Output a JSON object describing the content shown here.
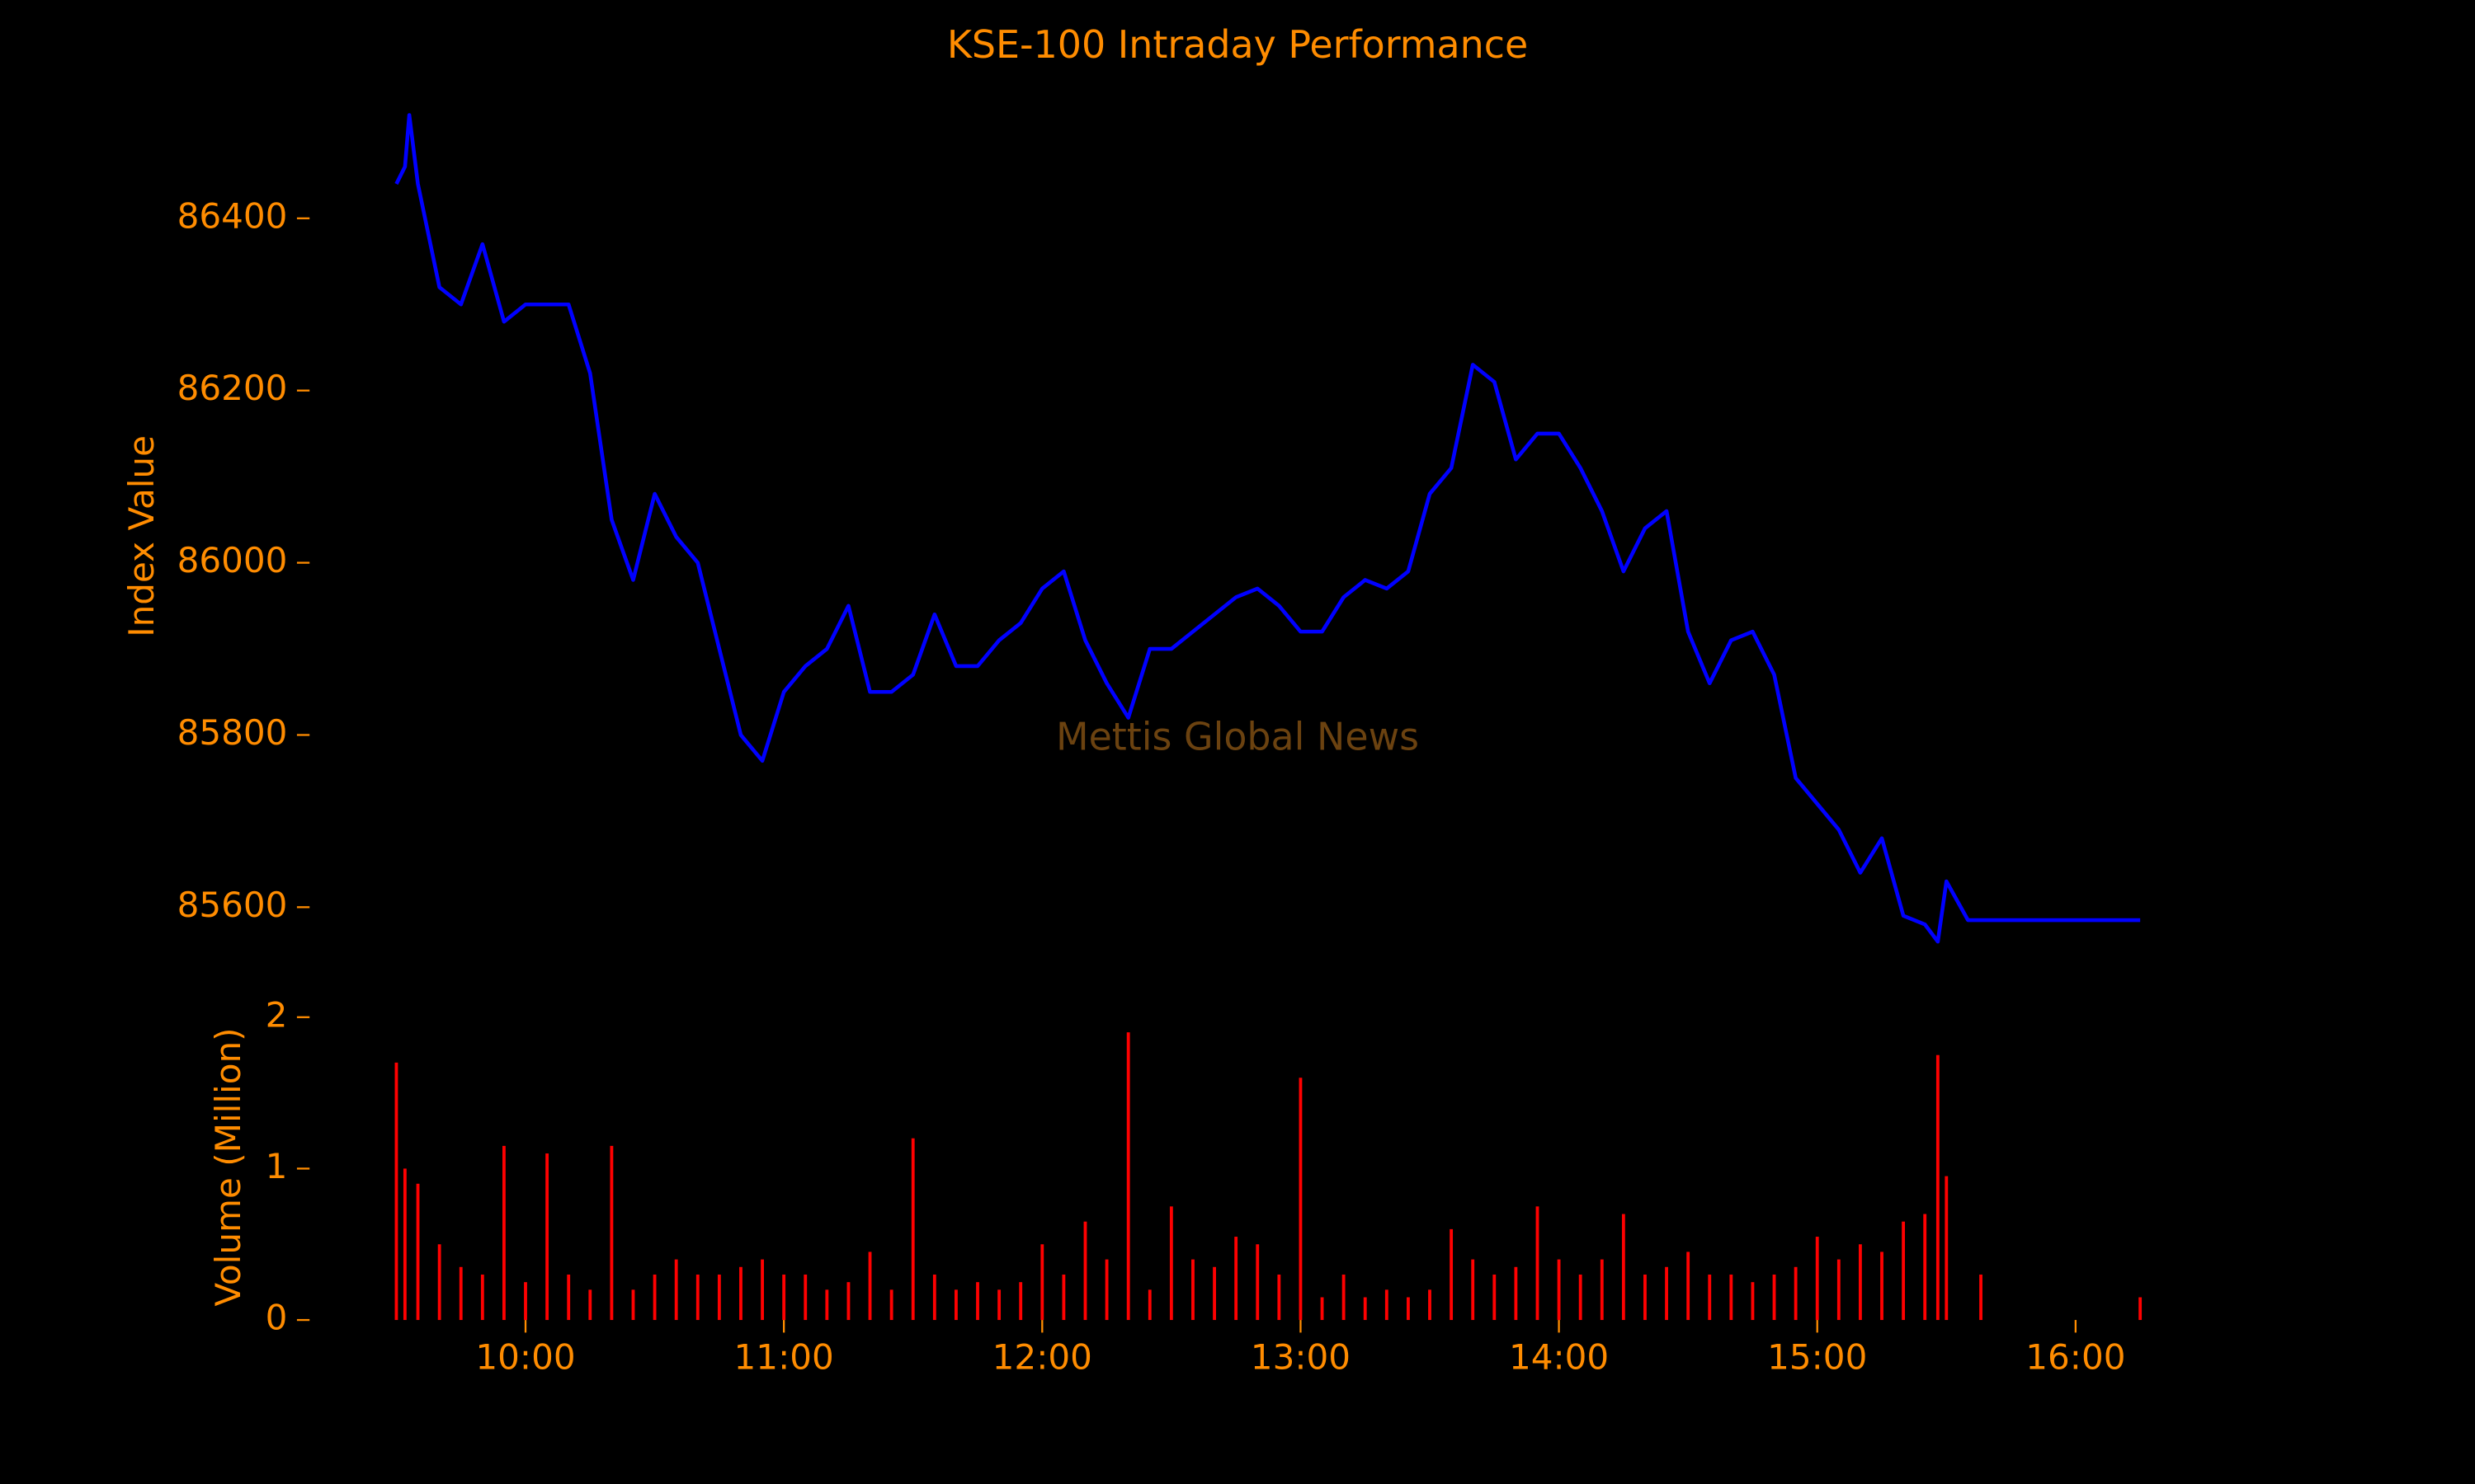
{
  "chart_data": [
    {
      "type": "line",
      "title": "KSE-100 Intraday Performance",
      "annotation": "Mettis Global News",
      "ylabel": "Index Value",
      "color": "#0000ff",
      "x": [
        "09:30",
        "09:32",
        "09:33",
        "09:35",
        "09:40",
        "09:45",
        "09:50",
        "09:55",
        "10:00",
        "10:05",
        "10:10",
        "10:15",
        "10:20",
        "10:25",
        "10:30",
        "10:35",
        "10:40",
        "10:45",
        "10:50",
        "10:55",
        "11:00",
        "11:05",
        "11:10",
        "11:15",
        "11:20",
        "11:25",
        "11:30",
        "11:35",
        "11:40",
        "11:45",
        "11:50",
        "11:55",
        "12:00",
        "12:05",
        "12:10",
        "12:15",
        "12:20",
        "12:25",
        "12:30",
        "12:35",
        "12:40",
        "12:45",
        "12:50",
        "12:55",
        "13:00",
        "13:05",
        "13:10",
        "13:15",
        "13:20",
        "13:25",
        "13:30",
        "13:35",
        "13:40",
        "13:45",
        "13:50",
        "13:55",
        "14:00",
        "14:05",
        "14:10",
        "14:15",
        "14:20",
        "14:25",
        "14:30",
        "14:35",
        "14:40",
        "14:45",
        "14:50",
        "14:55",
        "15:00",
        "15:05",
        "15:10",
        "15:15",
        "15:20",
        "15:25",
        "15:28",
        "15:30",
        "15:35",
        "16:15"
      ],
      "values": [
        86440,
        86460,
        86520,
        86440,
        86320,
        86300,
        86370,
        86280,
        86300,
        86300,
        86300,
        86220,
        86050,
        85980,
        86080,
        86030,
        86000,
        85900,
        85800,
        85770,
        85850,
        85880,
        85900,
        85950,
        85850,
        85850,
        85870,
        85940,
        85880,
        85880,
        85910,
        85930,
        85970,
        85990,
        85910,
        85860,
        85820,
        85900,
        85900,
        85920,
        85940,
        85960,
        85970,
        85950,
        85920,
        85920,
        85960,
        85980,
        85970,
        85990,
        86080,
        86110,
        86230,
        86210,
        86120,
        86150,
        86150,
        86110,
        86060,
        85990,
        86040,
        86060,
        85920,
        85860,
        85910,
        85920,
        85870,
        85750,
        85720,
        85690,
        85640,
        85680,
        85590,
        85580,
        85560,
        85630,
        85585,
        85585
      ],
      "xlim": [
        "09:30",
        "16:15"
      ],
      "ylim": [
        85540,
        86540
      ],
      "yticks": [
        85600,
        85800,
        86000,
        86200,
        86400
      ]
    },
    {
      "type": "bar",
      "ylabel": "Volume (Million)",
      "color": "#ff0000",
      "x": [
        "09:30",
        "09:32",
        "09:35",
        "09:40",
        "09:45",
        "09:50",
        "09:55",
        "10:00",
        "10:05",
        "10:10",
        "10:15",
        "10:20",
        "10:25",
        "10:30",
        "10:35",
        "10:40",
        "10:45",
        "10:50",
        "10:55",
        "11:00",
        "11:05",
        "11:10",
        "11:15",
        "11:20",
        "11:25",
        "11:30",
        "11:35",
        "11:40",
        "11:45",
        "11:50",
        "11:55",
        "12:00",
        "12:05",
        "12:10",
        "12:15",
        "12:20",
        "12:25",
        "12:30",
        "12:35",
        "12:40",
        "12:45",
        "12:50",
        "12:55",
        "13:00",
        "13:05",
        "13:10",
        "13:15",
        "13:20",
        "13:25",
        "13:30",
        "13:35",
        "13:40",
        "13:45",
        "13:50",
        "13:55",
        "14:00",
        "14:05",
        "14:10",
        "14:15",
        "14:20",
        "14:25",
        "14:30",
        "14:35",
        "14:40",
        "14:45",
        "14:50",
        "14:55",
        "15:00",
        "15:05",
        "15:10",
        "15:15",
        "15:20",
        "15:25",
        "15:28",
        "15:30",
        "15:38",
        "16:15"
      ],
      "values": [
        1.7,
        1.0,
        0.9,
        0.5,
        0.35,
        0.3,
        1.15,
        0.25,
        1.1,
        0.3,
        0.2,
        1.15,
        0.2,
        0.3,
        0.4,
        0.3,
        0.3,
        0.35,
        0.4,
        0.3,
        0.3,
        0.2,
        0.25,
        0.45,
        0.2,
        1.2,
        0.3,
        0.2,
        0.25,
        0.2,
        0.25,
        0.5,
        0.3,
        0.65,
        0.4,
        1.9,
        0.2,
        0.75,
        0.4,
        0.35,
        0.55,
        0.5,
        0.3,
        1.6,
        0.15,
        0.3,
        0.15,
        0.2,
        0.15,
        0.2,
        0.6,
        0.4,
        0.3,
        0.35,
        0.75,
        0.4,
        0.3,
        0.4,
        0.7,
        0.3,
        0.35,
        0.45,
        0.3,
        0.3,
        0.25,
        0.3,
        0.35,
        0.55,
        0.4,
        0.5,
        0.45,
        0.65,
        0.7,
        1.75,
        0.95,
        0.3,
        0.15
      ],
      "xlim": [
        "09:30",
        "16:15"
      ],
      "ylim": [
        0,
        2
      ],
      "yticks": [
        0,
        1,
        2
      ],
      "xticks": [
        "10:00",
        "11:00",
        "12:00",
        "13:00",
        "14:00",
        "15:00",
        "16:00"
      ]
    }
  ]
}
